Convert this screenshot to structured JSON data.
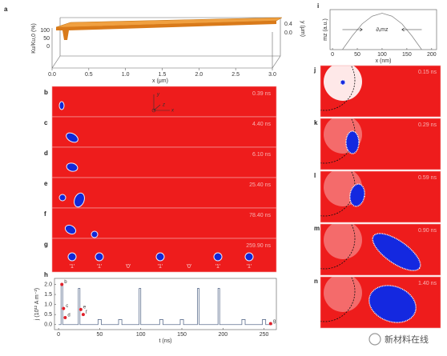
{
  "panel_a": {
    "label": "a",
    "ylabel": "Ku/Ku,0 (%)",
    "yticks": [
      "100",
      "50",
      "0"
    ],
    "xticks": [
      "0.0",
      "0.5",
      "1.0",
      "1.5",
      "2.0",
      "2.5",
      "3.0"
    ],
    "xlabel": "x (μm)",
    "zticks": [
      "0.4",
      "0.0"
    ],
    "zlabel": "y (μm)"
  },
  "snapshots": [
    {
      "label": "b",
      "time": "0.39 ns"
    },
    {
      "label": "c",
      "time": "4.40 ns"
    },
    {
      "label": "d",
      "time": "6.10 ns"
    },
    {
      "label": "e",
      "time": "25.40 ns"
    },
    {
      "label": "f",
      "time": "78.40 ns"
    },
    {
      "label": "g",
      "time": "259.90 ns"
    }
  ],
  "frame_axes": [
    "y",
    "z",
    "x"
  ],
  "bits": [
    "'1'",
    "'1'",
    "'0'",
    "'1'",
    "'0'",
    "'1'",
    "'1'"
  ],
  "zoom_panels": [
    {
      "label": "j",
      "time": "0.15 ns"
    },
    {
      "label": "k",
      "time": "0.29 ns"
    },
    {
      "label": "l",
      "time": "0.59 ns"
    },
    {
      "label": "m",
      "time": "0.90 ns"
    },
    {
      "label": "n",
      "time": "1.40 ns"
    }
  ],
  "chart_data": [
    {
      "type": "line",
      "label": "h",
      "xlabel": "t (ns)",
      "ylabel": "j (10¹² A m⁻²)",
      "x": [
        0,
        3,
        3,
        5,
        5,
        24,
        24,
        26,
        26,
        48,
        48,
        52,
        52,
        73,
        73,
        77,
        77,
        98,
        98,
        100,
        100,
        123,
        123,
        127,
        127,
        148,
        148,
        152,
        152,
        169,
        169,
        171,
        171,
        194,
        194,
        196,
        196,
        223,
        223,
        227,
        227,
        248,
        248,
        252,
        252,
        260
      ],
      "series": [
        {
          "color": "#5d6f8f",
          "values": [
            0,
            0,
            2.0,
            2.0,
            0,
            0,
            1.8,
            1.8,
            0,
            0,
            0.25,
            0.25,
            0,
            0,
            0.25,
            0.25,
            0,
            0,
            1.8,
            1.8,
            0,
            0,
            0.25,
            0.25,
            0,
            0,
            0.25,
            0.25,
            0,
            0,
            1.8,
            1.8,
            0,
            0,
            1.8,
            1.8,
            0,
            0,
            0.25,
            0.25,
            0,
            0,
            0.25,
            0.25,
            0,
            0
          ]
        }
      ],
      "points": [
        {
          "label": "b",
          "x": 4,
          "y": 2.0
        },
        {
          "label": "c",
          "x": 6,
          "y": 0.8
        },
        {
          "label": "d",
          "x": 8,
          "y": 0.35
        },
        {
          "label": "e",
          "x": 27,
          "y": 0.75
        },
        {
          "label": "f",
          "x": 30,
          "y": 0.5
        },
        {
          "label": "g",
          "x": 258,
          "y": 0.05
        }
      ],
      "point_color": "#e0202a",
      "xlim": [
        -5,
        265
      ],
      "ylim": [
        -0.25,
        2.3
      ],
      "xticks": [
        0,
        50,
        100,
        150,
        200,
        250
      ],
      "yticks": [
        {
          "value": 0,
          "label": "0.0"
        },
        {
          "value": 0.5,
          "label": "0.5"
        },
        {
          "value": 1,
          "label": "1.0"
        },
        {
          "value": 1.5,
          "label": "1.5"
        },
        {
          "value": 2,
          "label": "2.0"
        }
      ]
    },
    {
      "type": "line",
      "label": "i",
      "xlabel": "x (nm)",
      "ylabel": "mz (a.u.)",
      "annotation": "∂ₓmz",
      "x": [
        20,
        40,
        60,
        80,
        100,
        120,
        140,
        160,
        180
      ],
      "series": [
        {
          "color": "#888888",
          "values": [
            0,
            0.38,
            0.71,
            0.92,
            1.0,
            0.92,
            0.71,
            0.38,
            0
          ]
        }
      ],
      "xlim": [
        -5,
        210
      ],
      "ylim": [
        0,
        1.1
      ],
      "xticks": [
        0,
        50,
        100,
        150,
        200
      ]
    }
  ],
  "watermark": "新材料在线"
}
